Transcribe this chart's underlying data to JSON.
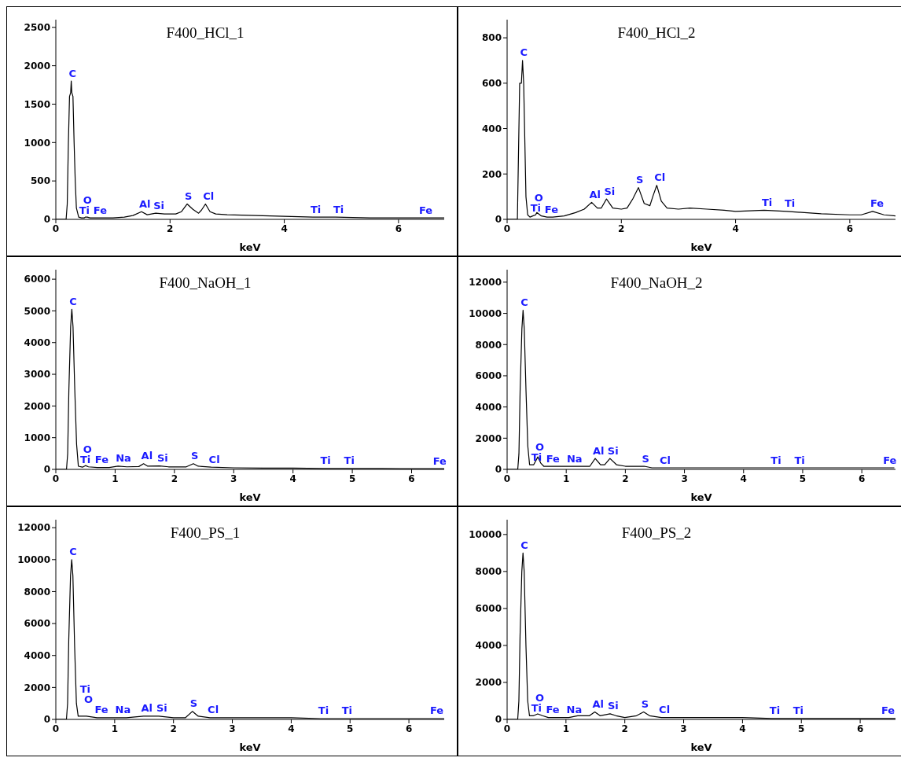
{
  "chart_data": [
    {
      "type": "line",
      "title": "F400_HCl_1",
      "xlabel": "keV",
      "xlim": [
        0,
        6.8
      ],
      "xticks": [
        0,
        2,
        4,
        6
      ],
      "ylim": [
        0,
        2600
      ],
      "yticks": [
        0,
        500,
        1000,
        1500,
        2000,
        2500
      ],
      "series": [
        {
          "color": "#000000",
          "x": [
            0,
            0.18,
            0.2,
            0.22,
            0.24,
            0.26,
            0.27,
            0.28,
            0.3,
            0.32,
            0.34,
            0.36,
            0.4,
            0.45,
            0.5,
            0.52,
            0.55,
            0.6,
            0.7,
            0.8,
            1.0,
            1.2,
            1.35,
            1.5,
            1.6,
            1.75,
            1.9,
            2.0,
            2.1,
            2.2,
            2.3,
            2.4,
            2.5,
            2.55,
            2.62,
            2.7,
            2.8,
            3.0,
            3.5,
            4.0,
            4.5,
            4.9,
            5.5,
            6.0,
            6.4,
            6.8
          ],
          "values": [
            0,
            0,
            200,
            1000,
            1600,
            1650,
            1800,
            1650,
            1600,
            1000,
            500,
            150,
            30,
            20,
            20,
            30,
            30,
            20,
            20,
            20,
            20,
            30,
            50,
            100,
            60,
            80,
            70,
            70,
            70,
            100,
            200,
            130,
            80,
            120,
            200,
            100,
            70,
            60,
            50,
            40,
            30,
            30,
            20,
            20,
            20,
            20
          ]
        }
      ],
      "annotations": [
        {
          "text": "C",
          "x": 0.27,
          "y": 1800
        },
        {
          "text": "O",
          "x": 0.52,
          "y": 30
        },
        {
          "text": "Ti",
          "x": 0.45,
          "y": 20
        },
        {
          "text": "Fe",
          "x": 0.7,
          "y": 20
        },
        {
          "text": "Al",
          "x": 1.5,
          "y": 100
        },
        {
          "text": "Si",
          "x": 1.75,
          "y": 80
        },
        {
          "text": "S",
          "x": 2.3,
          "y": 200
        },
        {
          "text": "Cl",
          "x": 2.62,
          "y": 200
        },
        {
          "text": "Ti",
          "x": 4.5,
          "y": 30
        },
        {
          "text": "Ti",
          "x": 4.9,
          "y": 30
        },
        {
          "text": "Fe",
          "x": 6.4,
          "y": 20
        }
      ]
    },
    {
      "type": "line",
      "title": "F400_HCl_2",
      "xlabel": "keV",
      "xlim": [
        0,
        6.8
      ],
      "xticks": [
        0,
        2,
        4,
        6
      ],
      "ylim": [
        0,
        880
      ],
      "yticks": [
        0,
        200,
        400,
        600,
        800
      ],
      "series": [
        {
          "color": "#000000",
          "x": [
            0,
            0.18,
            0.2,
            0.22,
            0.25,
            0.27,
            0.29,
            0.31,
            0.33,
            0.36,
            0.4,
            0.45,
            0.5,
            0.52,
            0.6,
            0.7,
            0.8,
            1.0,
            1.2,
            1.35,
            1.48,
            1.58,
            1.65,
            1.74,
            1.85,
            2.0,
            2.1,
            2.2,
            2.3,
            2.4,
            2.5,
            2.55,
            2.62,
            2.7,
            2.8,
            3.0,
            3.2,
            3.5,
            3.8,
            4.0,
            4.5,
            4.9,
            5.5,
            6.0,
            6.2,
            6.4,
            6.6,
            6.8
          ],
          "values": [
            0,
            0,
            300,
            600,
            600,
            700,
            600,
            350,
            100,
            20,
            10,
            15,
            20,
            30,
            15,
            10,
            10,
            15,
            30,
            45,
            75,
            50,
            50,
            90,
            50,
            45,
            50,
            90,
            140,
            70,
            60,
            100,
            150,
            80,
            50,
            45,
            50,
            45,
            40,
            35,
            40,
            35,
            25,
            20,
            20,
            35,
            20,
            15
          ]
        }
      ],
      "annotations": [
        {
          "text": "C",
          "x": 0.27,
          "y": 700
        },
        {
          "text": "O",
          "x": 0.52,
          "y": 30
        },
        {
          "text": "Ti",
          "x": 0.45,
          "y": 15
        },
        {
          "text": "Fe",
          "x": 0.7,
          "y": 10
        },
        {
          "text": "Al",
          "x": 1.48,
          "y": 75
        },
        {
          "text": "Si",
          "x": 1.74,
          "y": 90
        },
        {
          "text": "S",
          "x": 2.3,
          "y": 140
        },
        {
          "text": "Cl",
          "x": 2.62,
          "y": 150
        },
        {
          "text": "Ti",
          "x": 4.5,
          "y": 40
        },
        {
          "text": "Ti",
          "x": 4.9,
          "y": 35
        },
        {
          "text": "Fe",
          "x": 6.4,
          "y": 35
        }
      ]
    },
    {
      "type": "line",
      "title": "F400_NaOH_1",
      "xlabel": "keV",
      "xlim": [
        0,
        6.55
      ],
      "xticks": [
        0,
        1,
        2,
        3,
        4,
        5,
        6
      ],
      "ylim": [
        0,
        6300
      ],
      "yticks": [
        0,
        1000,
        2000,
        3000,
        4000,
        5000,
        6000
      ],
      "series": [
        {
          "color": "#000000",
          "x": [
            0,
            0.18,
            0.2,
            0.22,
            0.25,
            0.27,
            0.29,
            0.32,
            0.35,
            0.38,
            0.45,
            0.5,
            0.55,
            0.7,
            0.9,
            1.05,
            1.2,
            1.4,
            1.48,
            1.55,
            1.75,
            1.9,
            2.2,
            2.32,
            2.4,
            2.62,
            3.0,
            3.5,
            4.0,
            4.5,
            4.9,
            5.5,
            6.0,
            6.4,
            6.55
          ],
          "values": [
            0,
            0,
            500,
            2500,
            4500,
            5050,
            4500,
            2500,
            800,
            100,
            70,
            120,
            80,
            60,
            60,
            100,
            80,
            90,
            180,
            100,
            110,
            80,
            80,
            180,
            100,
            70,
            50,
            40,
            40,
            30,
            30,
            30,
            20,
            20,
            20
          ]
        }
      ],
      "annotations": [
        {
          "text": "C",
          "x": 0.27,
          "y": 5050
        },
        {
          "text": "O",
          "x": 0.5,
          "y": 120
        },
        {
          "text": "Ti",
          "x": 0.45,
          "y": 70
        },
        {
          "text": "Fe",
          "x": 0.7,
          "y": 60
        },
        {
          "text": "Na",
          "x": 1.05,
          "y": 100
        },
        {
          "text": "Al",
          "x": 1.48,
          "y": 180
        },
        {
          "text": "Si",
          "x": 1.75,
          "y": 110
        },
        {
          "text": "S",
          "x": 2.32,
          "y": 180
        },
        {
          "text": "Cl",
          "x": 2.62,
          "y": 70
        },
        {
          "text": "Ti",
          "x": 4.5,
          "y": 30
        },
        {
          "text": "Ti",
          "x": 4.9,
          "y": 30
        },
        {
          "text": "Fe",
          "x": 6.4,
          "y": 20
        }
      ]
    },
    {
      "type": "line",
      "title": "F400_NaOH_2",
      "xlabel": "keV",
      "xlim": [
        0,
        6.57
      ],
      "xticks": [
        0,
        1,
        2,
        3,
        4,
        5,
        6
      ],
      "ylim": [
        0,
        12800
      ],
      "yticks": [
        0,
        2000,
        4000,
        6000,
        8000,
        10000,
        12000
      ],
      "series": [
        {
          "color": "#000000",
          "x": [
            0,
            0.18,
            0.2,
            0.22,
            0.25,
            0.27,
            0.29,
            0.32,
            0.35,
            0.38,
            0.45,
            0.52,
            0.57,
            0.62,
            0.7,
            0.8,
            1.05,
            1.2,
            1.4,
            1.49,
            1.58,
            1.65,
            1.74,
            1.85,
            2.0,
            2.2,
            2.32,
            2.45,
            2.62,
            3.0,
            4.0,
            4.5,
            4.9,
            5.5,
            6.4,
            6.55
          ],
          "values": [
            0,
            0,
            1000,
            5000,
            9000,
            10200,
            9000,
            5000,
            1500,
            300,
            300,
            800,
            400,
            200,
            200,
            200,
            200,
            200,
            200,
            700,
            300,
            300,
            700,
            300,
            200,
            200,
            200,
            100,
            100,
            100,
            100,
            100,
            100,
            100,
            100,
            100
          ]
        }
      ],
      "annotations": [
        {
          "text": "C",
          "x": 0.27,
          "y": 10200
        },
        {
          "text": "O",
          "x": 0.52,
          "y": 800
        },
        {
          "text": "Ti",
          "x": 0.45,
          "y": 300
        },
        {
          "text": "Fe",
          "x": 0.7,
          "y": 200
        },
        {
          "text": "Na",
          "x": 1.05,
          "y": 200
        },
        {
          "text": "Al",
          "x": 1.49,
          "y": 700
        },
        {
          "text": "Si",
          "x": 1.74,
          "y": 700
        },
        {
          "text": "S",
          "x": 2.32,
          "y": 200
        },
        {
          "text": "Cl",
          "x": 2.62,
          "y": 100
        },
        {
          "text": "Ti",
          "x": 4.5,
          "y": 100
        },
        {
          "text": "Ti",
          "x": 4.9,
          "y": 100
        },
        {
          "text": "Fe",
          "x": 6.4,
          "y": 100
        }
      ]
    },
    {
      "type": "line",
      "title": "F400_PS_1",
      "xlabel": "keV",
      "xlim": [
        0,
        6.6
      ],
      "xticks": [
        0,
        1,
        2,
        3,
        4,
        5,
        6
      ],
      "ylim": [
        0,
        12500
      ],
      "yticks": [
        0,
        2000,
        4000,
        6000,
        8000,
        10000,
        12000
      ],
      "series": [
        {
          "color": "#000000",
          "x": [
            0,
            0.18,
            0.2,
            0.22,
            0.25,
            0.27,
            0.29,
            0.32,
            0.35,
            0.38,
            0.45,
            0.52,
            0.7,
            1.05,
            1.2,
            1.49,
            1.75,
            2.0,
            2.2,
            2.32,
            2.42,
            2.62,
            3.0,
            4.0,
            4.5,
            4.9,
            6.0,
            6.4,
            6.6
          ],
          "values": [
            0,
            0,
            1000,
            5000,
            9000,
            10000,
            9000,
            4500,
            1000,
            200,
            200,
            200,
            100,
            100,
            100,
            200,
            200,
            100,
            100,
            500,
            200,
            100,
            100,
            100,
            50,
            50,
            50,
            50,
            50
          ]
        }
      ],
      "annotations": [
        {
          "text": "C",
          "x": 0.27,
          "y": 10000
        },
        {
          "text": "O",
          "x": 0.52,
          "y": 200
        },
        {
          "text": "Ti",
          "x": 0.45,
          "y": 200
        },
        {
          "text": "Fe",
          "x": 0.7,
          "y": 100
        },
        {
          "text": "Na",
          "x": 1.05,
          "y": 100
        },
        {
          "text": "Al",
          "x": 1.49,
          "y": 200
        },
        {
          "text": "Si",
          "x": 1.75,
          "y": 200
        },
        {
          "text": "S",
          "x": 2.32,
          "y": 500
        },
        {
          "text": "Cl",
          "x": 2.62,
          "y": 100
        },
        {
          "text": "Ti",
          "x": 4.5,
          "y": 50
        },
        {
          "text": "Ti",
          "x": 4.9,
          "y": 50
        },
        {
          "text": "Fe",
          "x": 6.4,
          "y": 50
        }
      ]
    },
    {
      "type": "line",
      "title": "F400_PS_2",
      "xlabel": "keV",
      "xlim": [
        0,
        6.6
      ],
      "xticks": [
        0,
        1,
        2,
        3,
        4,
        5,
        6
      ],
      "ylim": [
        0,
        10800
      ],
      "yticks": [
        0,
        2000,
        4000,
        6000,
        8000,
        10000
      ],
      "series": [
        {
          "color": "#000000",
          "x": [
            0,
            0.18,
            0.2,
            0.22,
            0.25,
            0.27,
            0.29,
            0.32,
            0.35,
            0.38,
            0.45,
            0.52,
            0.6,
            0.7,
            1.05,
            1.2,
            1.4,
            1.49,
            1.58,
            1.75,
            1.85,
            2.0,
            2.2,
            2.32,
            2.42,
            2.62,
            3.0,
            4.0,
            4.5,
            4.9,
            6.0,
            6.4,
            6.6
          ],
          "values": [
            0,
            0,
            1000,
            4500,
            8000,
            9000,
            8000,
            4000,
            1000,
            200,
            200,
            300,
            200,
            100,
            100,
            200,
            200,
            400,
            200,
            300,
            200,
            100,
            200,
            400,
            200,
            100,
            100,
            100,
            50,
            50,
            50,
            50,
            50
          ]
        }
      ],
      "annotations": [
        {
          "text": "C",
          "x": 0.27,
          "y": 9000
        },
        {
          "text": "O",
          "x": 0.52,
          "y": 300
        },
        {
          "text": "Ti",
          "x": 0.45,
          "y": 200
        },
        {
          "text": "Fe",
          "x": 0.7,
          "y": 100
        },
        {
          "text": "Na",
          "x": 1.05,
          "y": 100
        },
        {
          "text": "Al",
          "x": 1.49,
          "y": 400
        },
        {
          "text": "Si",
          "x": 1.75,
          "y": 300
        },
        {
          "text": "S",
          "x": 2.32,
          "y": 400
        },
        {
          "text": "Cl",
          "x": 2.62,
          "y": 100
        },
        {
          "text": "Ti",
          "x": 4.5,
          "y": 50
        },
        {
          "text": "Ti",
          "x": 4.9,
          "y": 50
        },
        {
          "text": "Fe",
          "x": 6.4,
          "y": 50
        }
      ]
    }
  ]
}
